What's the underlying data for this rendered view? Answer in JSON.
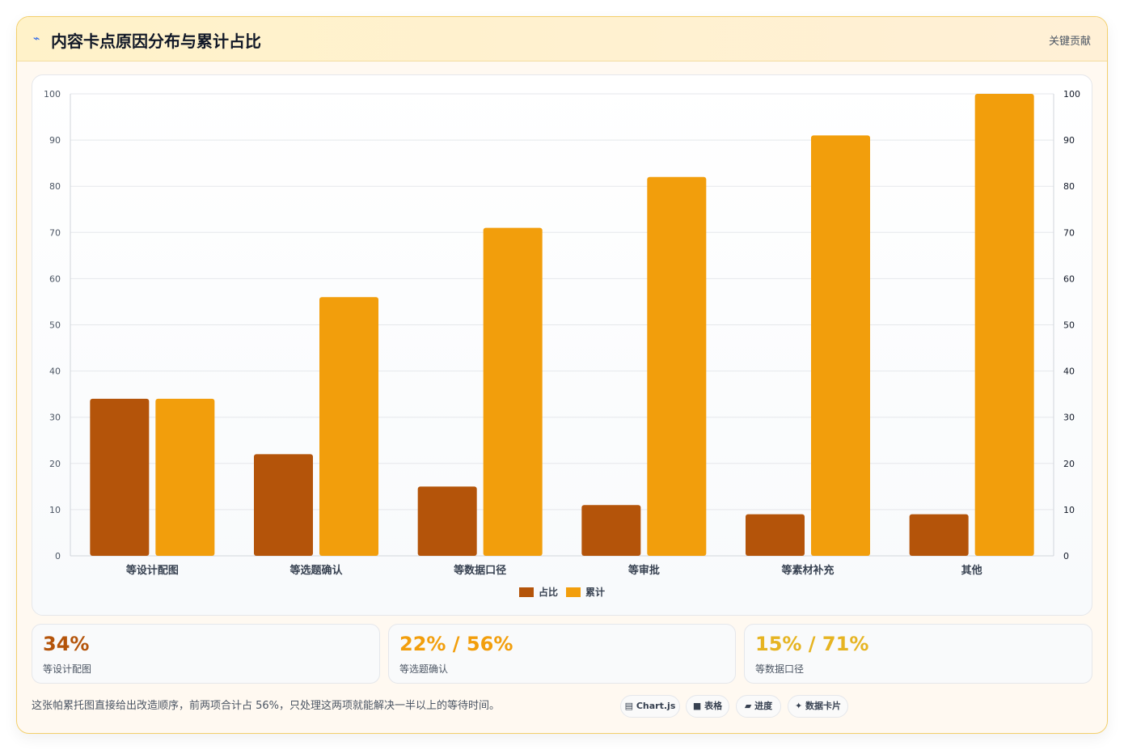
{
  "header": {
    "icon": "lightning-icon",
    "title": "内容卡点原因分布与累计占比",
    "badge": "关键贡献"
  },
  "chart_data": {
    "type": "bar",
    "categories": [
      "等设计配图",
      "等选题确认",
      "等数据口径",
      "等审批",
      "等素材补充",
      "其他"
    ],
    "series": [
      {
        "name": "占比",
        "values": [
          34,
          22,
          15,
          11,
          9,
          9
        ],
        "color": "#b4540a"
      },
      {
        "name": "累计",
        "values": [
          34,
          56,
          71,
          82,
          91,
          100
        ],
        "color": "#f29e0c"
      }
    ],
    "ylim": [
      0,
      100
    ],
    "yticks": [
      0,
      10,
      20,
      30,
      40,
      50,
      60,
      70,
      80,
      90,
      100
    ],
    "y2ticks": [
      0,
      10,
      20,
      30,
      40,
      50,
      60,
      70,
      80,
      90,
      100
    ],
    "grid": true,
    "legend": "bottom-center"
  },
  "stats": [
    {
      "value": "34%",
      "label": "等设计配图",
      "color": "#b4540a"
    },
    {
      "value": "22% / 56%",
      "label": "等选题确认",
      "color": "#f29e0c"
    },
    {
      "value": "15% / 71%",
      "label": "等数据口径",
      "color": "#e6b422"
    }
  ],
  "note": "这张帕累托图直接给出改造顺序，前两项合计占 56%，只处理这两项就能解决一半以上的等待时间。",
  "chips": [
    {
      "icon": "chart-icon",
      "glyph": "▤",
      "label": "Chart.js"
    },
    {
      "icon": "table-icon",
      "glyph": "■",
      "label": "表格"
    },
    {
      "icon": "progress-icon",
      "glyph": "▰",
      "label": "进度"
    },
    {
      "icon": "sparkle-icon",
      "glyph": "✦",
      "label": "数据卡片"
    }
  ]
}
